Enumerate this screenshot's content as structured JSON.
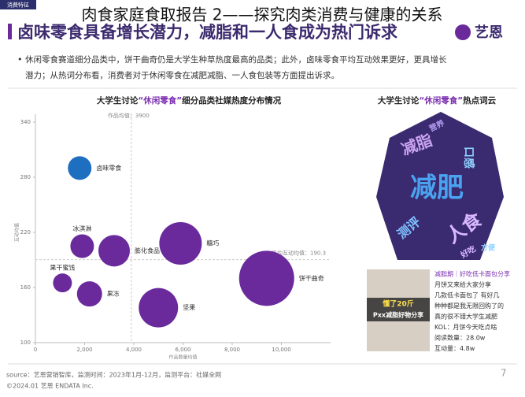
{
  "tag": "消费特征",
  "overlay_title": "肉食家庭食取报告 2——探究肉类消费与健康的关系",
  "heading": "卤味零食具备增长潜力，减脂和一人食成为热门诉求",
  "logo": "艺恩",
  "bullet": [
    "休闲零食赛道细分品类中，饼干曲奇仍是大学生种草热度最高的品类；此外，卤味零食平均互动效果更好，更具增长",
    "潜力；从热词分布看，消费者对于休闲零食在减肥减脂、一人食包装等方面提出诉求。"
  ],
  "chart_data": {
    "type": "bubble",
    "title": [
      "大学生讨论",
      "“休闲零食”",
      "细分品类社媒热度分布情况"
    ],
    "x_label": "作品数量均值",
    "y_label": "互动均值",
    "categories": [
      "卤味零食",
      "冰淇淋",
      "膨化食品",
      "糖巧",
      "饼干曲奇",
      "果干蜜饯",
      "果冻",
      "坚果"
    ],
    "x": [
      1800,
      1900,
      3200,
      5900,
      9400,
      1100,
      2200,
      5000
    ],
    "values": [
      290,
      205,
      200,
      208,
      170,
      165,
      153,
      138
    ],
    "sizes": [
      225,
      225,
      400,
      729,
      1225,
      144,
      256,
      625
    ],
    "colors": [
      "#1f6fc0",
      "#6a2a9c",
      "#6a2a9c",
      "#6a2a9c",
      "#6a2a9c",
      "#6a2a9c",
      "#6a2a9c",
      "#6a2a9c"
    ],
    "xlim": [
      0,
      12000
    ],
    "xticks": [
      0,
      {
        "value": 2000,
        "label": "2,000"
      },
      {
        "value": 4000,
        "label": "4,000"
      },
      {
        "value": 6000,
        "label": "6,000"
      },
      {
        "value": 8000,
        "label": "8,000"
      },
      {
        "value": 10000,
        "label": "10,000"
      }
    ],
    "ylim": [
      100,
      340
    ],
    "yticks": [
      100,
      160,
      220,
      280,
      340
    ],
    "ref_lines": [
      {
        "axis": "x",
        "value": 3900,
        "label": "作品均值：3900"
      },
      {
        "axis": "y",
        "value": 190.3,
        "label": "平均互动均值：190.3"
      }
    ]
  },
  "wordcloud": {
    "title": [
      "大学生讨论",
      "“休闲零食”",
      "热点词云"
    ],
    "words": [
      "减肥",
      "减脂",
      "人食",
      "测评",
      "口感",
      "好吃",
      "营养",
      "方便"
    ]
  },
  "post": {
    "image_text": [
      "懂了20斤",
      "Pxx减脂好物分享"
    ],
    "lines": [
      "减脂期｜好吃低卡面包分享",
      "月饼又来给大家分享",
      "几款低卡面包了 有好几",
      "种种都是我无限回购了的",
      "真的很不错大学生减肥",
      "KOL：月饼今天吃点啥",
      "阅读数量：28.0w",
      "互动量：4.8w"
    ]
  },
  "footer": {
    "source": "source：艺恩营销智库，监测时间：2023年1月-12月，监测平台：社媒全网",
    "copyright": "©2024.01 艺恩 ENDATA Inc.",
    "page": "7"
  }
}
